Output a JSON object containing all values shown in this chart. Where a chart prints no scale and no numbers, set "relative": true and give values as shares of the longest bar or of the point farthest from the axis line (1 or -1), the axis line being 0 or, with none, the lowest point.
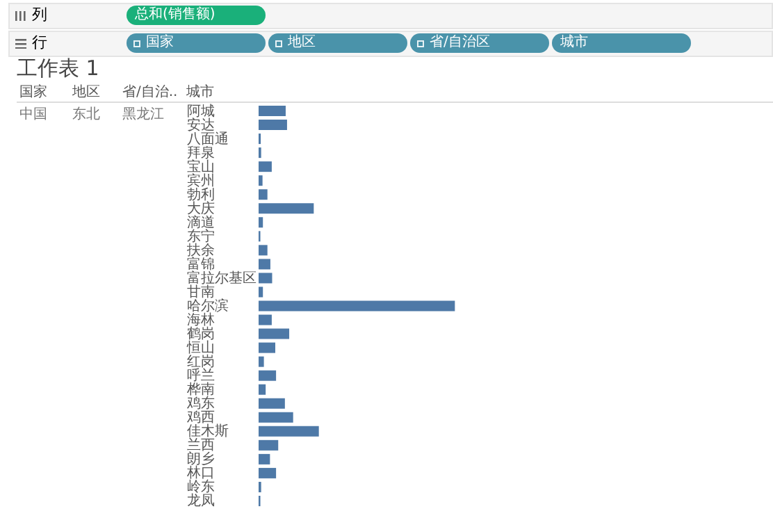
{
  "chart_data": {
    "type": "bar",
    "orientation": "horizontal",
    "relative": true,
    "title": "工作表 1",
    "ylabel": "城市",
    "categories": [
      "阿城",
      "安达",
      "八面通",
      "拜泉",
      "宝山",
      "宾州",
      "勃利",
      "大庆",
      "滴道",
      "东宁",
      "扶余",
      "富锦",
      "富拉尔基区",
      "甘南",
      "哈尔滨",
      "海林",
      "鹤岗",
      "恒山",
      "红岗",
      "呼兰",
      "桦南",
      "鸡东",
      "鸡西",
      "佳木斯",
      "兰西",
      "朗乡",
      "林口",
      "岭东",
      "龙凤"
    ],
    "series": [
      {
        "color": "#4e79a7",
        "values": [
          0.138,
          0.145,
          0.011,
          0.013,
          0.067,
          0.02,
          0.045,
          0.281,
          0.022,
          0.009,
          0.045,
          0.06,
          0.069,
          0.022,
          1,
          0.067,
          0.156,
          0.085,
          0.027,
          0.089,
          0.036,
          0.134,
          0.176,
          0.307,
          0.1,
          0.058,
          0.089,
          0.013,
          0.009
        ]
      }
    ],
    "annotations": [
      "列",
      "总和(销售额)",
      "行",
      "国家",
      "地区",
      "省/自治区",
      "城市",
      "国家",
      "地区",
      "省/自治..",
      "中国",
      "东北",
      "黑龙江"
    ]
  }
}
